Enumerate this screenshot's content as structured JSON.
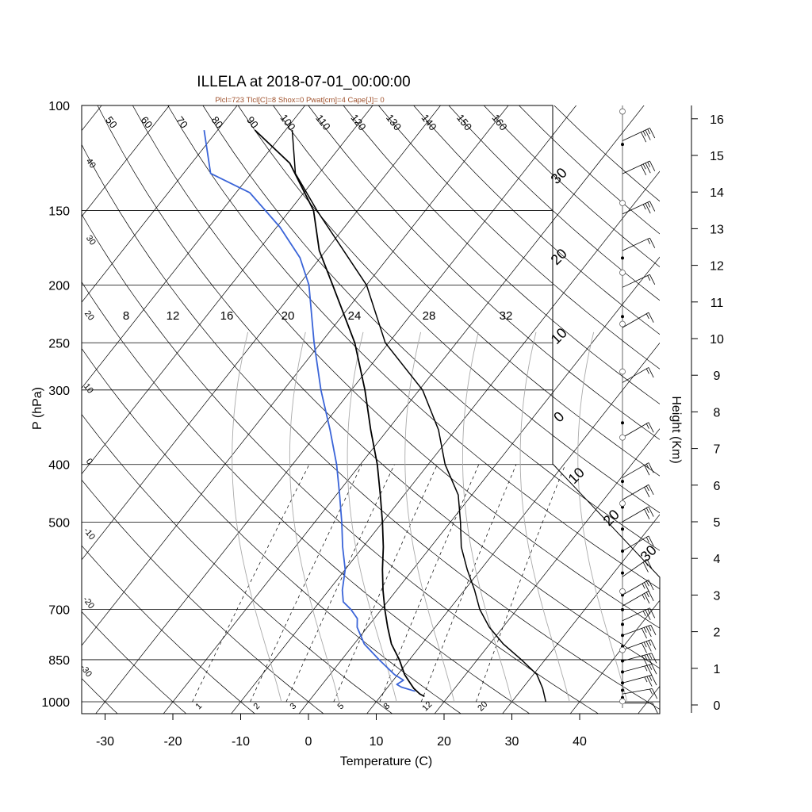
{
  "chart_data": {
    "type": "skew-t",
    "title": "ILLELA at 2018-07-01_00:00:00",
    "subtitle": "Plcl=723 Tlcl[C]=8 Shox=0 Pwat[cm]=4 Cape[J]= 0",
    "xlabel": "Temperature (C)",
    "ylabel": "P (hPa)",
    "y2label": "Height (Km)",
    "x_ticks": [
      -30,
      -20,
      -10,
      0,
      10,
      20,
      30,
      40
    ],
    "p_ticks": [
      100,
      150,
      200,
      250,
      300,
      400,
      500,
      700,
      850,
      1000
    ],
    "height_ticks": [
      0,
      1,
      2,
      3,
      4,
      5,
      6,
      7,
      8,
      9,
      10,
      11,
      12,
      13,
      14,
      15,
      16
    ],
    "theta_labels": [
      50,
      60,
      70,
      80,
      90,
      100,
      110,
      120,
      130,
      140,
      150,
      160
    ],
    "skew_isotherm_labels": [
      -30,
      -20,
      -10,
      0,
      10,
      20,
      30
    ],
    "left_edge_labels": [
      40,
      30,
      20,
      10,
      0,
      -10,
      -20,
      -30
    ],
    "theta_e_labels": [
      8,
      12,
      16,
      20,
      24,
      28,
      32
    ],
    "mixing_ratio_labels": [
      1,
      2,
      3,
      5,
      8,
      12,
      20
    ],
    "temperature_profile": {
      "name": "Temperature",
      "p": [
        980,
        970,
        950,
        925,
        900,
        850,
        800,
        750,
        700,
        650,
        600,
        550,
        500,
        450,
        400,
        350,
        300,
        250,
        200,
        175,
        150,
        125,
        110
      ],
      "values": [
        16.5,
        15.5,
        14.0,
        12.5,
        11.0,
        8.5,
        5.5,
        3.0,
        0.5,
        -2.0,
        -4.5,
        -7.0,
        -10.0,
        -13.5,
        -17.5,
        -22.5,
        -28.0,
        -35.0,
        -45.0,
        -51.0,
        -56.5,
        -65.5,
        -74.5
      ]
    },
    "dewpoint_profile": {
      "name": "Dew point",
      "p": [
        960,
        945,
        935,
        920,
        900,
        850,
        800,
        750,
        725,
        700,
        680,
        650,
        600,
        550,
        500,
        450,
        400,
        350,
        300,
        250,
        200,
        180,
        160,
        140,
        130,
        110
      ],
      "values": [
        14.5,
        12.0,
        11.0,
        11.5,
        9.5,
        5.5,
        1.5,
        -1.5,
        -2.5,
        -4.5,
        -6.5,
        -8.0,
        -10.0,
        -13.0,
        -16.0,
        -19.5,
        -23.5,
        -28.5,
        -34.5,
        -41.0,
        -48.5,
        -53.0,
        -59.5,
        -68.0,
        -76.0,
        -82.0
      ]
    },
    "parcel_profile": {
      "name": "Parcel",
      "p": [
        1000,
        950,
        900,
        850,
        800,
        750,
        700,
        650,
        600,
        550,
        500,
        450,
        400,
        350,
        300,
        250,
        200,
        150,
        130,
        110
      ],
      "values": [
        35.0,
        33.0,
        30.5,
        26.5,
        22.0,
        18.0,
        14.5,
        11.5,
        8.0,
        4.5,
        1.5,
        -2.0,
        -7.5,
        -12.5,
        -19.5,
        -30.5,
        -40.0,
        -56.0,
        -63.5,
        -69.0
      ]
    },
    "wind_barbs": [
      {
        "h": 0.05,
        "dir": 270,
        "spd": 5
      },
      {
        "h": 0.3,
        "dir": 280,
        "spd": 10
      },
      {
        "h": 0.6,
        "dir": 285,
        "spd": 20
      },
      {
        "h": 0.9,
        "dir": 285,
        "spd": 20
      },
      {
        "h": 1.2,
        "dir": 285,
        "spd": 25
      },
      {
        "h": 1.5,
        "dir": 290,
        "spd": 25
      },
      {
        "h": 1.9,
        "dir": 290,
        "spd": 25
      },
      {
        "h": 2.3,
        "dir": 295,
        "spd": 20
      },
      {
        "h": 2.7,
        "dir": 300,
        "spd": 20
      },
      {
        "h": 3.0,
        "dir": 300,
        "spd": 20
      },
      {
        "h": 3.5,
        "dir": 305,
        "spd": 15
      },
      {
        "h": 4.2,
        "dir": 300,
        "spd": 10
      },
      {
        "h": 5.0,
        "dir": 300,
        "spd": 15
      },
      {
        "h": 5.6,
        "dir": 300,
        "spd": 15
      },
      {
        "h": 6.2,
        "dir": 300,
        "spd": 15
      },
      {
        "h": 7.3,
        "dir": 300,
        "spd": 10
      },
      {
        "h": 8.8,
        "dir": 300,
        "spd": 10
      },
      {
        "h": 10.3,
        "dir": 300,
        "spd": 10
      },
      {
        "h": 11.4,
        "dir": 295,
        "spd": 10
      },
      {
        "h": 12.4,
        "dir": 295,
        "spd": 10
      },
      {
        "h": 13.4,
        "dir": 295,
        "spd": 20
      },
      {
        "h": 14.5,
        "dir": 295,
        "spd": 25
      },
      {
        "h": 15.4,
        "dir": 295,
        "spd": 25
      }
    ],
    "wind_points_filled": [
      0.2,
      0.4,
      0.6,
      0.9,
      1.2,
      1.6,
      1.9,
      2.2,
      2.6,
      3.0,
      3.6,
      4.2,
      4.8,
      5.4,
      6.1,
      7.7,
      10.6,
      12.2,
      15.3
    ],
    "wind_points_open": [
      0.1,
      1.5,
      3.1,
      5.5,
      7.3,
      9.1,
      10.4,
      11.8,
      13.7,
      16.2
    ],
    "colors": {
      "temperature": "#000000",
      "dewpoint": "#3a64d8",
      "parcel": "#000000",
      "grid": "#000000",
      "theta_e": "#aaaaaa",
      "subtitle": "#a0522d"
    }
  }
}
